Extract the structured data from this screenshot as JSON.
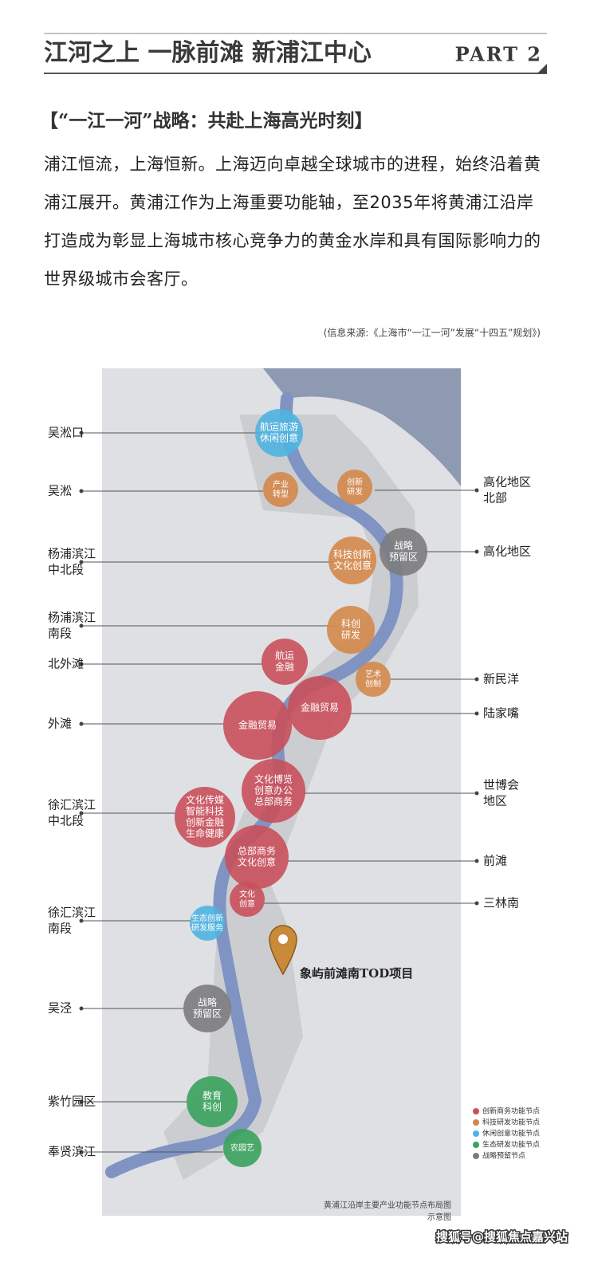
{
  "header": {
    "title": "江河之上 一脉前滩 新浦江中心",
    "part": "PART 2"
  },
  "section_title": "【“一江一河”战略：共赴上海高光时刻】",
  "paragraph": "浦江恒流，上海恒新。上海迈向卓越全球城市的进程，始终沿着黄浦江展开。黄浦江作为上海重要功能轴，至2035年将黄浦江沿岸打造成为彰显上海城市核心竞争力的黄金水岸和具有国际影响力的世界级城市会客厅。",
  "source": "(信息来源:《上海市“一江一河”发展“十四五”规划》)",
  "map": {
    "left_labels": [
      {
        "lines": [
          "吴淞口"
        ]
      },
      {
        "lines": [
          "吴淞"
        ]
      },
      {
        "lines": [
          "杨浦滨江",
          "中北段"
        ]
      },
      {
        "lines": [
          "杨浦滨江",
          "南段"
        ]
      },
      {
        "lines": [
          "北外滩"
        ]
      },
      {
        "lines": [
          "外滩"
        ]
      },
      {
        "lines": [
          "徐汇滨江",
          "中北段"
        ]
      },
      {
        "lines": [
          "徐汇滨江",
          "南段"
        ]
      },
      {
        "lines": [
          "吴泾"
        ]
      },
      {
        "lines": [
          "紫竹园区"
        ]
      },
      {
        "lines": [
          "奉贤滨江"
        ]
      }
    ],
    "right_labels": [
      {
        "lines": [
          "高化地区",
          "北部"
        ]
      },
      {
        "lines": [
          "高化地区"
        ]
      },
      {
        "lines": [
          "新民洋"
        ]
      },
      {
        "lines": [
          "陆家嘴"
        ]
      },
      {
        "lines": [
          "世博会",
          "地区"
        ]
      },
      {
        "lines": [
          "前滩"
        ]
      },
      {
        "lines": [
          "三林南"
        ]
      }
    ],
    "nodes": [
      {
        "lines": [
          "航运旅游",
          "休闲创意"
        ],
        "color": "#4fb4e0"
      },
      {
        "lines": [
          "产业",
          "转型"
        ],
        "color": "#d4884a"
      },
      {
        "lines": [
          "创新",
          "研发"
        ],
        "color": "#d4884a"
      },
      {
        "lines": [
          "科技创新",
          "文化创意"
        ],
        "color": "#d4884a"
      },
      {
        "lines": [
          "战略",
          "预留区"
        ],
        "color": "#7c7c7e"
      },
      {
        "lines": [
          "科创",
          "研发"
        ],
        "color": "#d4884a"
      },
      {
        "lines": [
          "航运",
          "金融"
        ],
        "color": "#c9505a"
      },
      {
        "lines": [
          "艺术",
          "创制"
        ],
        "color": "#d4884a"
      },
      {
        "lines": [
          "金融贸易"
        ],
        "color": "#c9505a"
      },
      {
        "lines": [
          "金融贸易"
        ],
        "color": "#c9505a"
      },
      {
        "lines": [
          "文化博览",
          "创意办公",
          "总部商务"
        ],
        "color": "#c9505a"
      },
      {
        "lines": [
          "文化传媒",
          "智能科技",
          "创新金融",
          "生命健康"
        ],
        "color": "#c9505a"
      },
      {
        "lines": [
          "总部商务",
          "文化创意"
        ],
        "color": "#c9505a"
      },
      {
        "lines": [
          "文化",
          "创意"
        ],
        "color": "#c9505a"
      },
      {
        "lines": [
          "生态创新",
          "研发服务"
        ],
        "color": "#4fb4e0"
      },
      {
        "lines": [
          "战略",
          "预留区"
        ],
        "color": "#7c7c7e"
      },
      {
        "lines": [
          "教育",
          "科创"
        ],
        "color": "#3aa35c"
      },
      {
        "lines": [
          "农园艺"
        ],
        "color": "#3aa35c"
      }
    ],
    "project": "象屿前滩南TOD项目",
    "legend": [
      {
        "label": "创新商务功能节点",
        "color": "#c9505a"
      },
      {
        "label": "科技研发功能节点",
        "color": "#d4884a"
      },
      {
        "label": "休闲创意功能节点",
        "color": "#4fb4e0"
      },
      {
        "label": "生态研发功能节点",
        "color": "#3aa35c"
      },
      {
        "label": "战略预留节点",
        "color": "#7c7c7e"
      }
    ],
    "caption": [
      "黄浦江沿岸主要产业功能节点布局图",
      "示意图"
    ]
  },
  "watermark": "搜狐号@搜狐焦点嘉兴站"
}
